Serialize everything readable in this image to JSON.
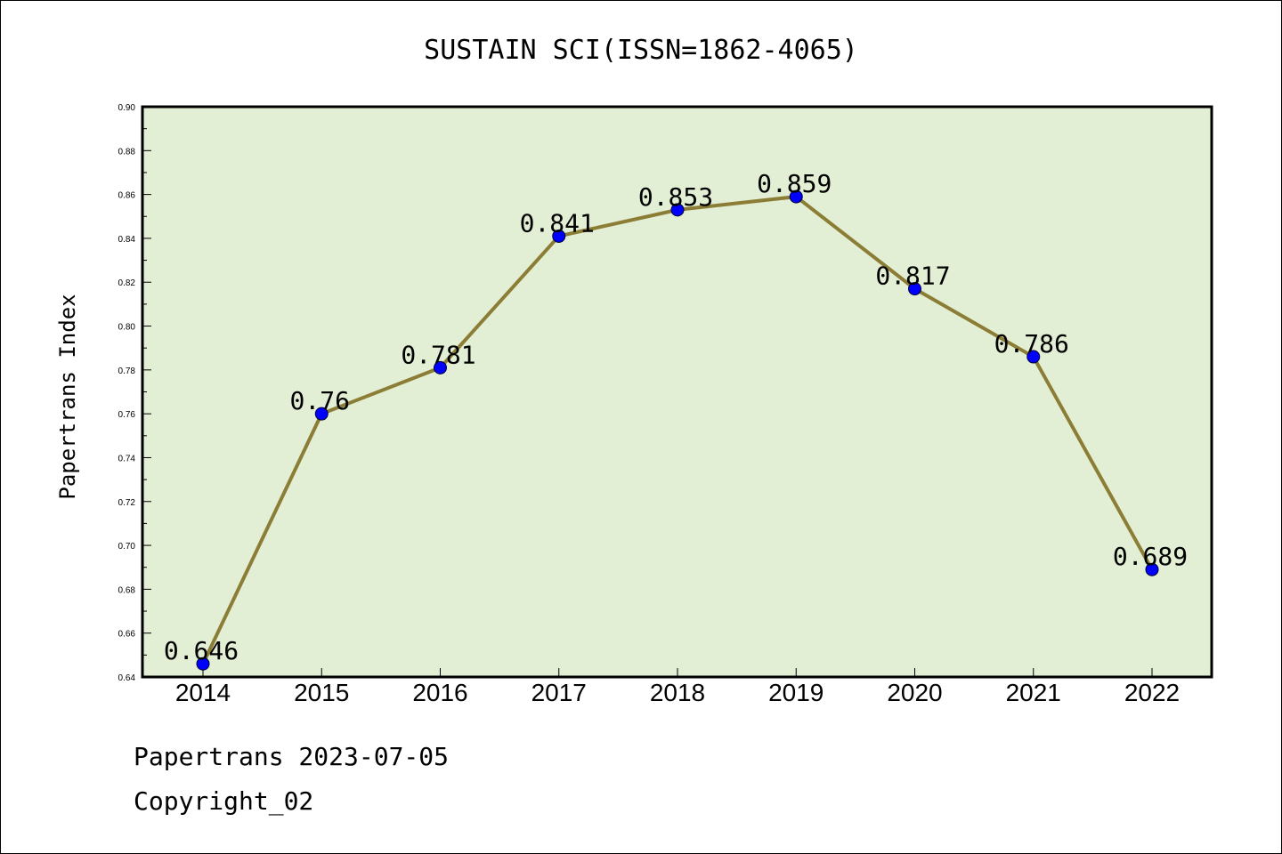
{
  "chart_data": {
    "type": "line",
    "title": "SUSTAIN SCI(ISSN=1862-4065)",
    "xlabel": "",
    "ylabel": "Papertrans Index",
    "categories": [
      "2014",
      "2015",
      "2016",
      "2017",
      "2018",
      "2019",
      "2020",
      "2021",
      "2022"
    ],
    "values": [
      0.646,
      0.76,
      0.781,
      0.841,
      0.853,
      0.859,
      0.817,
      0.786,
      0.689
    ],
    "data_labels": [
      "0.646",
      "0.76",
      "0.781",
      "0.841",
      "0.853",
      "0.859",
      "0.817",
      "0.786",
      "0.689"
    ],
    "ylim": [
      0.64,
      0.9
    ],
    "yticks": [
      "0.64",
      "0.66",
      "0.68",
      "0.70",
      "0.72",
      "0.74",
      "0.76",
      "0.78",
      "0.80",
      "0.82",
      "0.84",
      "0.86",
      "0.88",
      "0.90"
    ],
    "grid": false,
    "colors": {
      "plot_background": "#e2efd5",
      "line": "#8b7d35",
      "marker": "#0000ff"
    }
  },
  "footer": {
    "line1": "Papertrans 2023-07-05",
    "line2": "Copyright_02"
  }
}
